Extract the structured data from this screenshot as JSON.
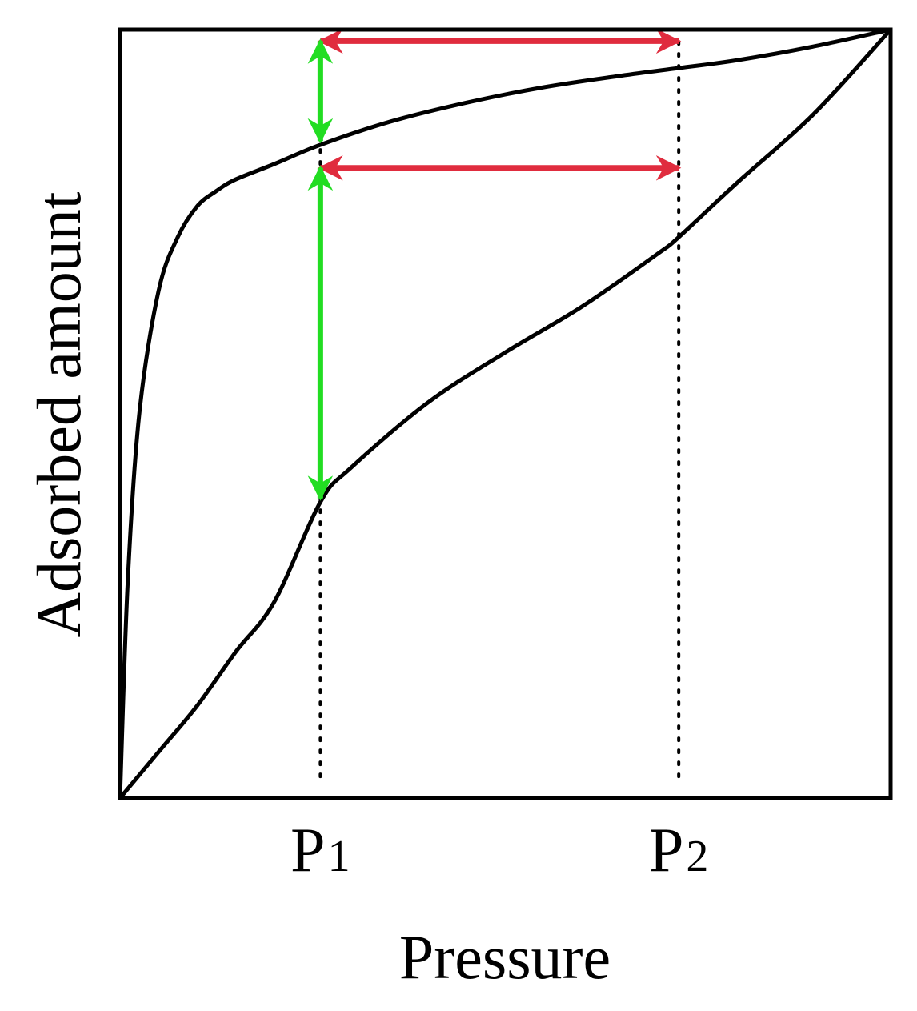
{
  "chart_data": {
    "type": "line",
    "title": "",
    "xlabel": "Pressure",
    "ylabel": "Adsorbed amount",
    "xlim": [
      0,
      1
    ],
    "ylim": [
      0,
      1
    ],
    "grid": false,
    "x_ticks": [
      {
        "x": 0.26,
        "base": "P",
        "sub": "1"
      },
      {
        "x": 0.725,
        "base": "P",
        "sub": "2"
      }
    ],
    "series": [
      {
        "x": [
          0,
          0.01,
          0.025,
          0.05,
          0.075,
          0.1,
          0.125,
          0.15,
          0.2,
          0.26,
          0.35,
          0.45,
          0.55,
          0.65,
          0.725,
          0.8,
          0.9,
          1.0
        ],
        "y": [
          0,
          0.28,
          0.5,
          0.66,
          0.73,
          0.77,
          0.79,
          0.805,
          0.825,
          0.85,
          0.88,
          0.905,
          0.925,
          0.94,
          0.95,
          0.96,
          0.978,
          1.0
        ]
      },
      {
        "x": [
          0,
          0.05,
          0.1,
          0.15,
          0.2,
          0.26,
          0.3,
          0.4,
          0.5,
          0.6,
          0.7,
          0.725,
          0.8,
          0.9,
          1.0
        ],
        "y": [
          0,
          0.06,
          0.12,
          0.19,
          0.255,
          0.385,
          0.43,
          0.515,
          0.58,
          0.64,
          0.71,
          0.73,
          0.8,
          0.89,
          1.0
        ]
      }
    ],
    "dotted_lines": [
      {
        "x": 0.26,
        "y_from": 0.028,
        "y_to": 0.985
      },
      {
        "x": 0.725,
        "y_from": 0.028,
        "y_to": 0.985
      }
    ],
    "arrows": [
      {
        "kind": "double-headed",
        "color": "#e02c3e",
        "from": [
          0.26,
          0.985
        ],
        "to": [
          0.725,
          0.985
        ]
      },
      {
        "kind": "double-headed",
        "color": "#e02c3e",
        "from": [
          0.26,
          0.82
        ],
        "to": [
          0.725,
          0.82
        ]
      },
      {
        "kind": "double-headed",
        "color": "#22dd22",
        "from": [
          0.26,
          0.985
        ],
        "to": [
          0.26,
          0.855
        ]
      },
      {
        "kind": "double-headed",
        "color": "#22dd22",
        "from": [
          0.26,
          0.82
        ],
        "to": [
          0.26,
          0.39
        ]
      }
    ]
  }
}
